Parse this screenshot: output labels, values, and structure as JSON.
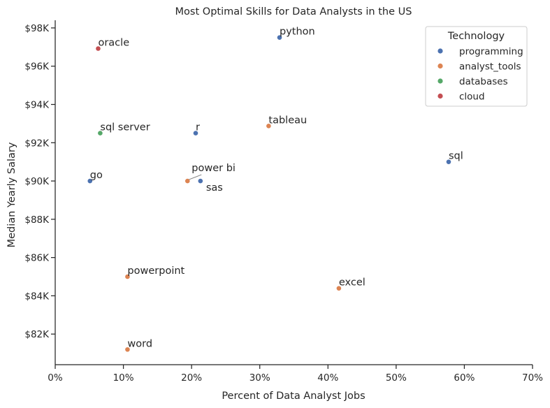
{
  "chart_data": {
    "type": "scatter",
    "title": "Most Optimal Skills for Data Analysts in the US",
    "xlabel": "Percent of Data Analyst Jobs",
    "ylabel": "Median Yearly Salary",
    "xlim": [
      0,
      70
    ],
    "ylim": [
      80400,
      98400
    ],
    "x_ticks": [
      0,
      10,
      20,
      30,
      40,
      50,
      60,
      70
    ],
    "x_tick_labels": [
      "0%",
      "10%",
      "20%",
      "30%",
      "40%",
      "50%",
      "60%",
      "70%"
    ],
    "y_ticks": [
      82000,
      84000,
      86000,
      88000,
      90000,
      92000,
      94000,
      96000,
      98000
    ],
    "y_tick_labels": [
      "$82K",
      "$84K",
      "$86K",
      "$88K",
      "$90K",
      "$92K",
      "$94K",
      "$96K",
      "$98K"
    ],
    "grid": false,
    "legend": {
      "title": "Technology",
      "placement": "top-right",
      "entries": [
        "programming",
        "analyst_tools",
        "databases",
        "cloud"
      ]
    },
    "series": [
      {
        "name": "programming",
        "color": "#4c72b0",
        "points": [
          {
            "label": "python",
            "x": 32.9,
            "y": 97500
          },
          {
            "label": "r",
            "x": 20.6,
            "y": 92500
          },
          {
            "label": "sql",
            "x": 57.7,
            "y": 91000
          },
          {
            "label": "go",
            "x": 5.1,
            "y": 90000
          },
          {
            "label": "sas",
            "x": 21.3,
            "y": 90000
          }
        ]
      },
      {
        "name": "analyst_tools",
        "color": "#dd8452",
        "points": [
          {
            "label": "tableau",
            "x": 31.3,
            "y": 92875
          },
          {
            "label": "power bi",
            "x": 19.4,
            "y": 90000
          },
          {
            "label": "powerpoint",
            "x": 10.6,
            "y": 85000
          },
          {
            "label": "excel",
            "x": 41.6,
            "y": 84392
          },
          {
            "label": "word",
            "x": 10.6,
            "y": 81194
          }
        ]
      },
      {
        "name": "databases",
        "color": "#55a868",
        "points": [
          {
            "label": "sql server",
            "x": 6.6,
            "y": 92500
          }
        ]
      },
      {
        "name": "cloud",
        "color": "#c44e52",
        "points": [
          {
            "label": "oracle",
            "x": 6.3,
            "y": 96921
          }
        ]
      }
    ]
  }
}
